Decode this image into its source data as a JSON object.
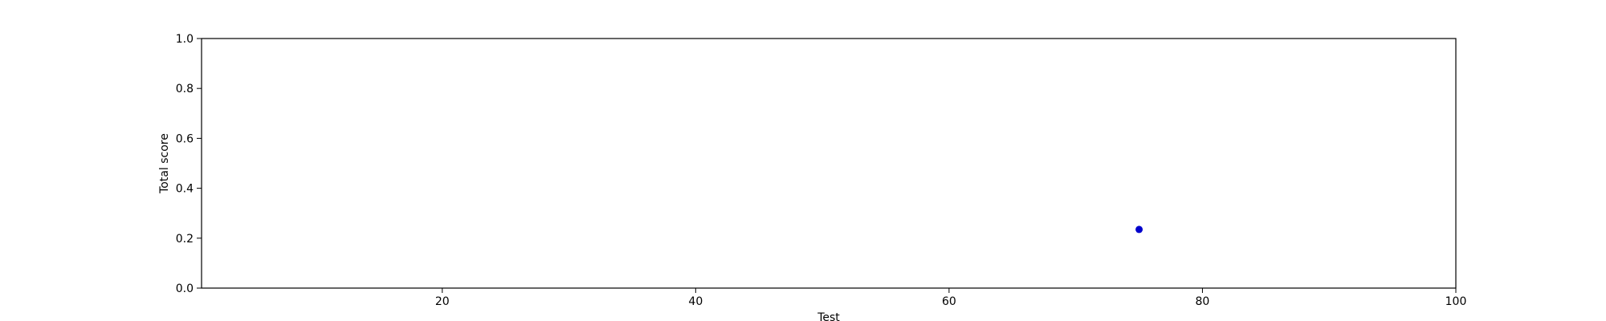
{
  "chart_data": {
    "type": "scatter",
    "title": "",
    "xlabel": "Test",
    "ylabel": "Total score",
    "xlim": [
      1,
      100
    ],
    "ylim": [
      0,
      1
    ],
    "xticks": [
      20,
      40,
      60,
      80,
      100
    ],
    "yticks": [
      0.0,
      0.2,
      0.4,
      0.6,
      0.8,
      1.0
    ],
    "xtick_labels": [
      "20",
      "40",
      "60",
      "80",
      "100"
    ],
    "ytick_labels": [
      "0.0",
      "0.2",
      "0.4",
      "0.6",
      "0.8",
      "1.0"
    ],
    "grid": false,
    "series": [
      {
        "color": "#0000cc",
        "points": [
          {
            "x": 75,
            "y": 0.235
          }
        ]
      }
    ]
  }
}
